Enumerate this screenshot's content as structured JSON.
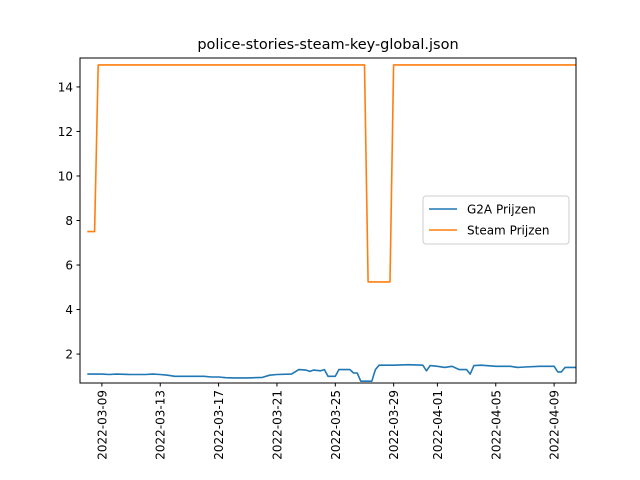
{
  "chart_data": {
    "type": "line",
    "title": "police-stories-steam-key-global.json",
    "xlabel": "",
    "ylabel": "",
    "x_type": "date",
    "xlim": [
      "2022-03-07T12:00",
      "2022-04-10T12:00"
    ],
    "ylim": [
      0.7,
      15.3
    ],
    "x_ticks": [
      "2022-03-09",
      "2022-03-13",
      "2022-03-17",
      "2022-03-21",
      "2022-03-25",
      "2022-03-29",
      "2022-04-01",
      "2022-04-05",
      "2022-04-09"
    ],
    "y_ticks": [
      2,
      4,
      6,
      8,
      10,
      12,
      14
    ],
    "grid": false,
    "legend_position": "center-right",
    "series": [
      {
        "name": "G2A Prijzen",
        "color": "#1f77b4",
        "points": [
          [
            "2022-03-08T00:00",
            1.1
          ],
          [
            "2022-03-09T00:00",
            1.1
          ],
          [
            "2022-03-09T12:00",
            1.08
          ],
          [
            "2022-03-10T00:00",
            1.1
          ],
          [
            "2022-03-11T00:00",
            1.08
          ],
          [
            "2022-03-12T00:00",
            1.08
          ],
          [
            "2022-03-12T12:00",
            1.1
          ],
          [
            "2022-03-13T00:00",
            1.08
          ],
          [
            "2022-03-13T12:00",
            1.05
          ],
          [
            "2022-03-14T00:00",
            1.0
          ],
          [
            "2022-03-15T00:00",
            1.0
          ],
          [
            "2022-03-16T00:00",
            1.0
          ],
          [
            "2022-03-16T12:00",
            0.97
          ],
          [
            "2022-03-17T00:00",
            0.97
          ],
          [
            "2022-03-17T12:00",
            0.94
          ],
          [
            "2022-03-18T00:00",
            0.93
          ],
          [
            "2022-03-19T00:00",
            0.93
          ],
          [
            "2022-03-20T00:00",
            0.95
          ],
          [
            "2022-03-20T12:00",
            1.05
          ],
          [
            "2022-03-21T00:00",
            1.08
          ],
          [
            "2022-03-22T00:00",
            1.1
          ],
          [
            "2022-03-22T12:00",
            1.3
          ],
          [
            "2022-03-23T00:00",
            1.28
          ],
          [
            "2022-03-23T06:00",
            1.22
          ],
          [
            "2022-03-23T12:00",
            1.28
          ],
          [
            "2022-03-24T00:00",
            1.25
          ],
          [
            "2022-03-24T06:00",
            1.3
          ],
          [
            "2022-03-24T12:00",
            1.0
          ],
          [
            "2022-03-25T00:00",
            1.0
          ],
          [
            "2022-03-25T06:00",
            1.3
          ],
          [
            "2022-03-26T00:00",
            1.3
          ],
          [
            "2022-03-26T06:00",
            1.15
          ],
          [
            "2022-03-26T12:00",
            1.15
          ],
          [
            "2022-03-26T18:00",
            0.78
          ],
          [
            "2022-03-27T12:00",
            0.78
          ],
          [
            "2022-03-27T18:00",
            1.3
          ],
          [
            "2022-03-28T00:00",
            1.5
          ],
          [
            "2022-03-29T00:00",
            1.5
          ],
          [
            "2022-03-30T00:00",
            1.52
          ],
          [
            "2022-03-31T00:00",
            1.5
          ],
          [
            "2022-03-31T06:00",
            1.25
          ],
          [
            "2022-03-31T12:00",
            1.48
          ],
          [
            "2022-04-01T00:00",
            1.45
          ],
          [
            "2022-04-01T12:00",
            1.4
          ],
          [
            "2022-04-02T00:00",
            1.45
          ],
          [
            "2022-04-02T12:00",
            1.3
          ],
          [
            "2022-04-03T00:00",
            1.3
          ],
          [
            "2022-04-03T06:00",
            1.1
          ],
          [
            "2022-04-03T12:00",
            1.48
          ],
          [
            "2022-04-04T00:00",
            1.5
          ],
          [
            "2022-04-05T00:00",
            1.45
          ],
          [
            "2022-04-06T00:00",
            1.45
          ],
          [
            "2022-04-06T12:00",
            1.4
          ],
          [
            "2022-04-07T00:00",
            1.42
          ],
          [
            "2022-04-08T00:00",
            1.45
          ],
          [
            "2022-04-09T00:00",
            1.45
          ],
          [
            "2022-04-09T06:00",
            1.2
          ],
          [
            "2022-04-09T12:00",
            1.2
          ],
          [
            "2022-04-09T18:00",
            1.4
          ],
          [
            "2022-04-10T12:00",
            1.4
          ]
        ]
      },
      {
        "name": "Steam Prijzen",
        "color": "#ff7f0e",
        "points": [
          [
            "2022-03-08T00:00",
            7.5
          ],
          [
            "2022-03-08T12:00",
            7.5
          ],
          [
            "2022-03-08T18:00",
            14.99
          ],
          [
            "2022-03-27T00:00",
            14.99
          ],
          [
            "2022-03-27T06:00",
            5.24
          ],
          [
            "2022-03-28T18:00",
            5.24
          ],
          [
            "2022-03-29T00:00",
            14.99
          ],
          [
            "2022-04-10T12:00",
            14.99
          ]
        ]
      }
    ]
  }
}
